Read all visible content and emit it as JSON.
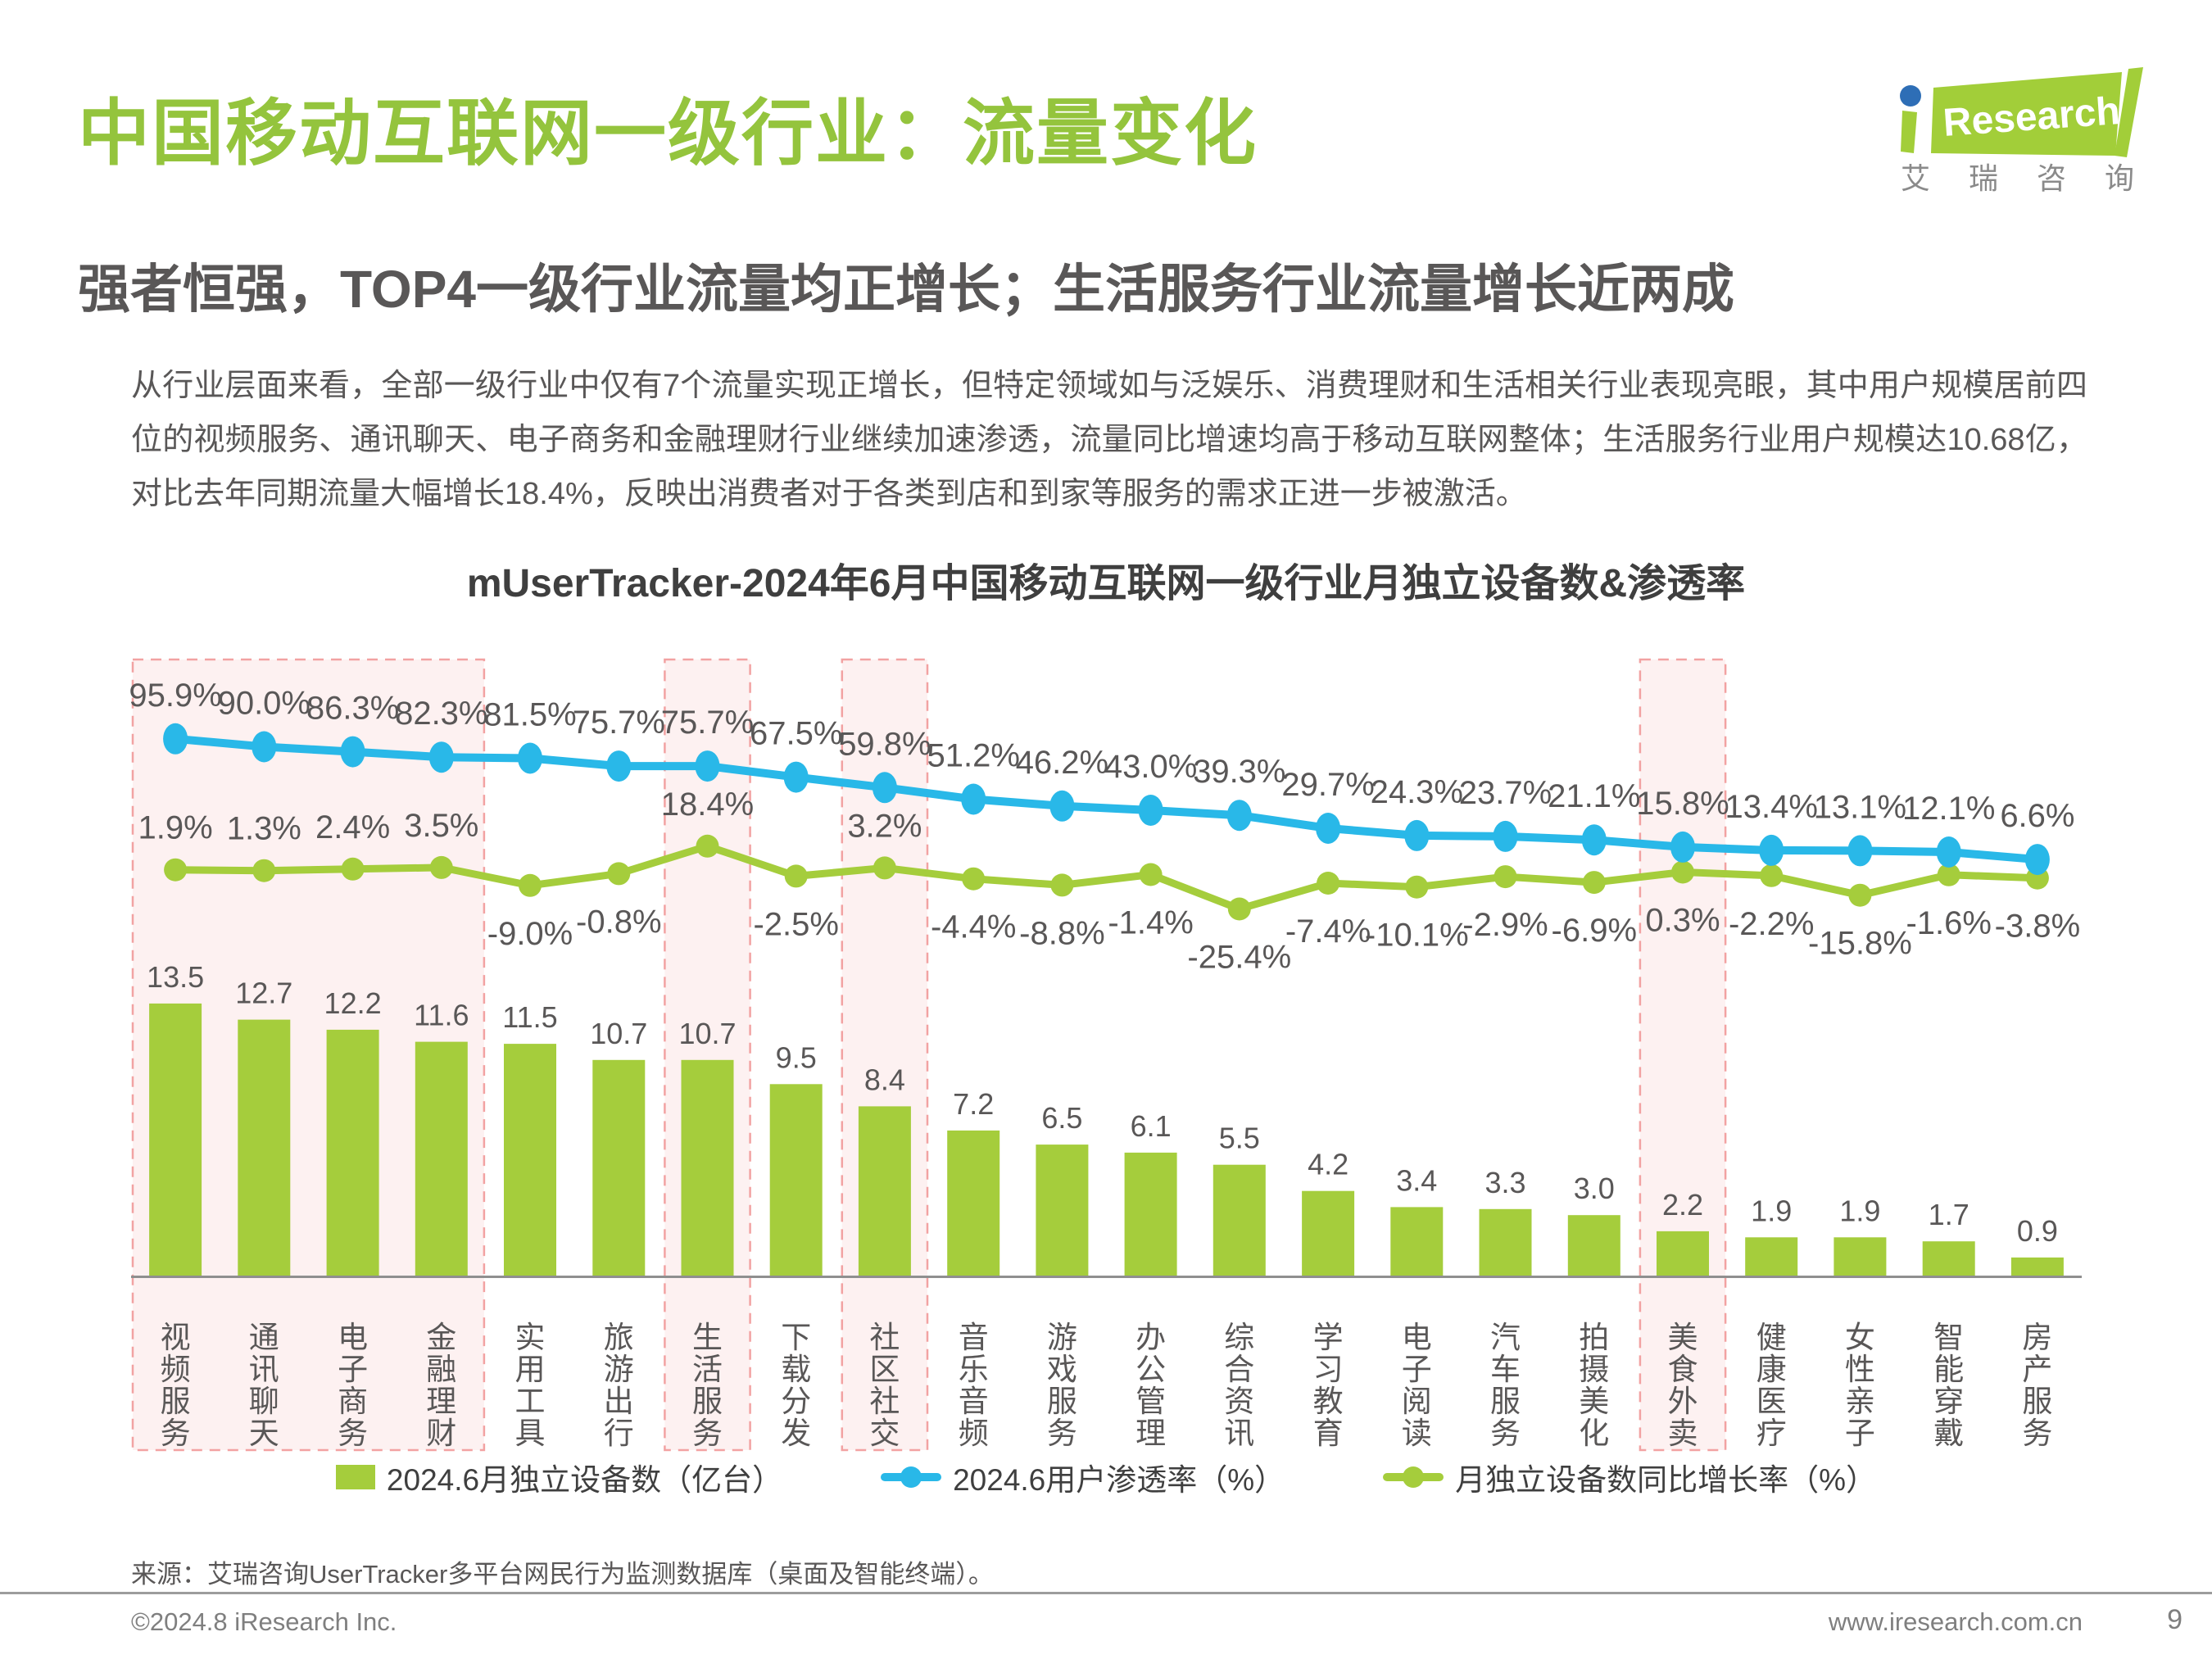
{
  "header": {
    "title": "中国移动互联网一级行业：流量变化",
    "subtitle": "强者恒强，TOP4一级行业流量均正增长；生活服务行业流量增长近两成",
    "paragraph": "从行业层面来看，全部一级行业中仅有7个流量实现正增长，但特定领域如与泛娱乐、消费理财和生活相关行业表现亮眼，其中用户规模居前四位的视频服务、通讯聊天、电子商务和金融理财行业继续加速渗透，流量同比增速均高于移动互联网整体；生活服务行业用户规模达10.68亿，对比去年同期流量大幅增长18.4%，反映出消费者对于各类到店和到家等服务的需求正进一步被激活。"
  },
  "logo": {
    "brand": "Research",
    "cn": "艾瑞咨询",
    "green": "#a2ce39",
    "dot_blue": "#2e6eb6"
  },
  "chart_data": {
    "type": "bar+line",
    "title": "mUserTracker-2024年6月中国移动互联网一级行业月独立设备数&渗透率",
    "categories": [
      "视频服务",
      "通讯聊天",
      "电子商务",
      "金融理财",
      "实用工具",
      "旅游出行",
      "生活服务",
      "下载分发",
      "社区社交",
      "音乐音频",
      "游戏服务",
      "办公管理",
      "综合资讯",
      "学习教育",
      "电子阅读",
      "汽车服务",
      "拍摄美化",
      "美食外卖",
      "健康医疗",
      "女性亲子",
      "智能穿戴",
      "房产服务"
    ],
    "series": [
      {
        "name": "2024.6月独立设备数（亿台）",
        "type": "bar",
        "color": "#a5cd3c",
        "values": [
          13.5,
          12.7,
          12.2,
          11.6,
          11.5,
          10.7,
          10.7,
          9.5,
          8.4,
          7.2,
          6.5,
          6.1,
          5.5,
          4.2,
          3.4,
          3.3,
          3.0,
          2.2,
          1.9,
          1.9,
          1.7,
          0.9
        ]
      },
      {
        "name": "2024.6用户渗透率（%）",
        "type": "line",
        "color": "#29b8e8",
        "values": [
          95.9,
          90.0,
          86.3,
          82.3,
          81.5,
          75.7,
          75.7,
          67.5,
          59.8,
          51.2,
          46.2,
          43.0,
          39.3,
          29.7,
          24.3,
          23.7,
          21.1,
          15.8,
          13.4,
          13.1,
          12.1,
          6.6
        ]
      },
      {
        "name": "月独立设备数同比增长率（%）",
        "type": "line",
        "color": "#a5cd3c",
        "values": [
          1.9,
          1.3,
          2.4,
          3.5,
          -9.0,
          -0.8,
          18.4,
          -2.5,
          3.2,
          -4.4,
          -8.8,
          -1.4,
          -25.4,
          -7.4,
          -10.1,
          -2.9,
          -6.9,
          0.3,
          -2.2,
          -15.8,
          -1.6,
          -3.8
        ]
      }
    ],
    "highlight_groups": [
      [
        0,
        3
      ],
      [
        6,
        6
      ],
      [
        8,
        8
      ],
      [
        17,
        17
      ]
    ],
    "highlighted_categories": [
      "视频服务",
      "通讯聊天",
      "电子商务",
      "金融理财",
      "生活服务",
      "社区社交",
      "美食外卖"
    ],
    "highlight_fill": "#fdf1f1",
    "highlight_border": "#f2a2a2",
    "legend_position": "bottom",
    "grid": false,
    "xlabel": "",
    "ylabel": ""
  },
  "source": "来源：艾瑞咨询UserTracker多平台网民行为监测数据库（桌面及智能终端）。",
  "footer": {
    "copyright": "©2024.8 iResearch Inc.",
    "website": "www.iresearch.com.cn",
    "page": "9"
  },
  "colors": {
    "title_green": "#94c43d",
    "bar_green": "#a5cd3c",
    "line_blue": "#29b8e8",
    "text_gray": "#595757",
    "highlight_fill": "#fdf1f1",
    "highlight_border": "#f2a2a2"
  }
}
